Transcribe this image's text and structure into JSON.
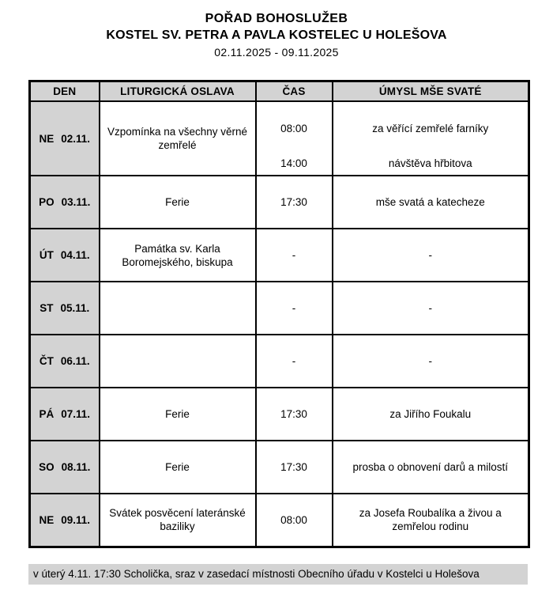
{
  "header": {
    "title": "POŘAD BOHOSLUŽEB",
    "subtitle": "KOSTEL SV. PETRA A PAVLA KOSTELEC U HOLEŠOVA",
    "date_range": "02.11.2025 - 09.11.2025"
  },
  "table": {
    "columns": [
      "DEN",
      "LITURGICKÁ OSLAVA",
      "ČAS",
      "ÚMYSL MŠE SVATÉ"
    ],
    "rows": [
      {
        "day": "NE",
        "date": "02.11.",
        "celebration": "Vzpomínka na všechny věrné zemřelé",
        "entries": [
          {
            "time": "08:00",
            "intention": "za věřící zemřelé farníky"
          },
          {
            "time": "14:00",
            "intention": "návštěva hřbitova"
          }
        ]
      },
      {
        "day": "PO",
        "date": "03.11.",
        "celebration": "Ferie",
        "entries": [
          {
            "time": "17:30",
            "intention": "mše svatá a katecheze"
          }
        ]
      },
      {
        "day": "ÚT",
        "date": "04.11.",
        "celebration": "Památka sv. Karla Boromejského, biskupa",
        "entries": [
          {
            "time": "-",
            "intention": "-"
          }
        ]
      },
      {
        "day": "ST",
        "date": "05.11.",
        "celebration": "",
        "entries": [
          {
            "time": "-",
            "intention": "-"
          }
        ]
      },
      {
        "day": "ČT",
        "date": "06.11.",
        "celebration": "",
        "entries": [
          {
            "time": "-",
            "intention": "-"
          }
        ]
      },
      {
        "day": "PÁ",
        "date": "07.11.",
        "celebration": "Ferie",
        "entries": [
          {
            "time": "17:30",
            "intention": "za Jiřího Foukalu"
          }
        ]
      },
      {
        "day": "SO",
        "date": "08.11.",
        "celebration": "Ferie",
        "entries": [
          {
            "time": "17:30",
            "intention": "prosba o obnovení darů a milostí"
          }
        ]
      },
      {
        "day": "NE",
        "date": "09.11.",
        "celebration": "Svátek posvěcení lateránské baziliky",
        "entries": [
          {
            "time": "08:00",
            "intention": "za Josefa Roubalíka a živou a zemřelou rodinu"
          }
        ]
      }
    ]
  },
  "footer": {
    "note": "v úterý 4.11. 17:30 Scholička, sraz v zasedací místnosti Obecního úřadu v Kostelci u Holešova"
  },
  "colors": {
    "cell_gray": "#d3d3d3",
    "border": "#000000",
    "background": "#ffffff"
  }
}
